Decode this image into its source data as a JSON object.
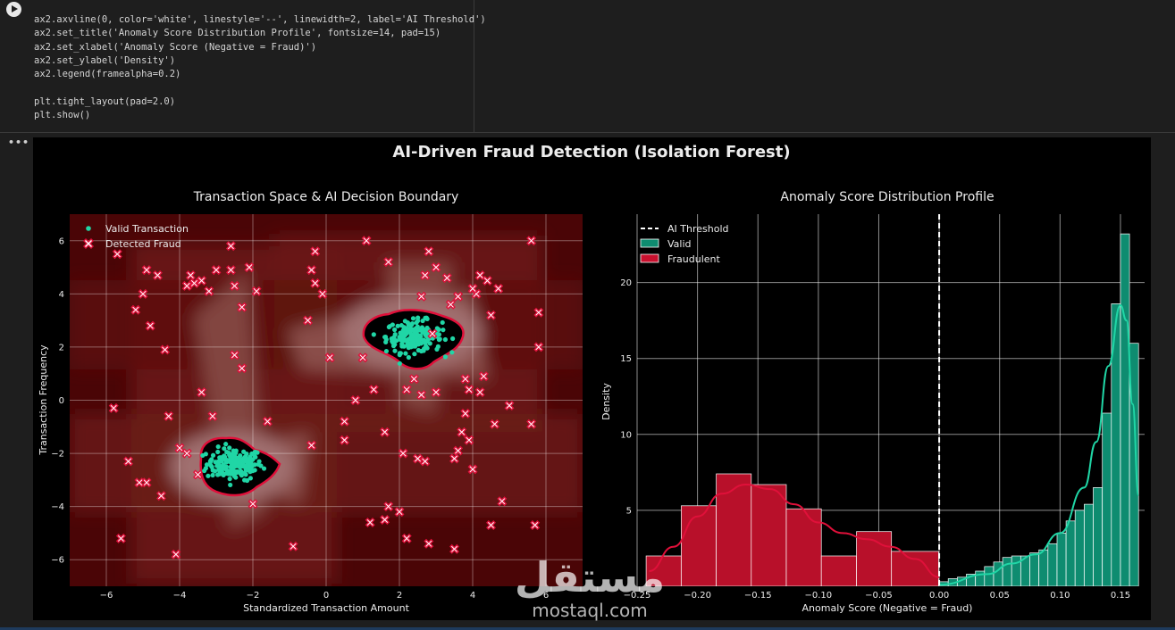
{
  "code_cell": {
    "lines": [
      "ax2.axvline(0, color='white', linestyle='--', linewidth=2, label='AI Threshold')",
      "ax2.set_title('Anomaly Score Distribution Profile', fontsize=14, pad=15)",
      "ax2.set_xlabel('Anomaly Score (Negative = Fraud)')",
      "ax2.set_ylabel('Density')",
      "ax2.legend(framealpha=0.2)",
      "",
      "plt.tight_layout(pad=2.0)",
      "plt.show()"
    ]
  },
  "output_menu": "•••",
  "figure": {
    "suptitle": "AI-Driven Fraud Detection (Isolation Forest)"
  },
  "watermark": {
    "arabic": "مستقل",
    "latin": "mostaql.com"
  },
  "colors": {
    "valid": "#20d6a6",
    "fraud": "#c8102e",
    "fraud_marker_fill": "#ffffff",
    "fraud_marker_edge": "#e0103a",
    "boundary": "#e0103a",
    "plot_bg": "#000000"
  },
  "chart_data": [
    {
      "type": "scatter",
      "title": "Transaction Space & AI Decision Boundary",
      "xlabel": "Standardized Transaction Amount",
      "ylabel": "Transaction Frequency",
      "xlim": [
        -7,
        7
      ],
      "ylim": [
        -7,
        7
      ],
      "xticks": [
        -6,
        -4,
        -2,
        0,
        2,
        4,
        6
      ],
      "yticks": [
        -6,
        -4,
        -2,
        0,
        2,
        4,
        6
      ],
      "grid": true,
      "legend_position": "top-left",
      "series": [
        {
          "name": "Valid Transaction",
          "marker": "circle",
          "clusters": [
            {
              "center": [
                -2.5,
                -2.4
              ],
              "count": 180
            },
            {
              "center": [
                2.4,
                2.4
              ],
              "count": 180
            }
          ]
        },
        {
          "name": "Detected Fraud",
          "marker": "x",
          "points": [
            [
              -5.7,
              5.5
            ],
            [
              -5.2,
              3.4
            ],
            [
              -5.0,
              4.0
            ],
            [
              -4.6,
              4.7
            ],
            [
              -4.9,
              4.9
            ],
            [
              -4.8,
              2.8
            ],
            [
              -4.4,
              1.9
            ],
            [
              -3.8,
              4.3
            ],
            [
              -3.6,
              4.4
            ],
            [
              -3.7,
              4.7
            ],
            [
              -3.4,
              4.5
            ],
            [
              -3.2,
              4.1
            ],
            [
              -3.0,
              4.9
            ],
            [
              -2.6,
              4.9
            ],
            [
              -2.5,
              4.3
            ],
            [
              -2.3,
              3.5
            ],
            [
              -2.6,
              5.8
            ],
            [
              -2.1,
              5.0
            ],
            [
              -1.9,
              4.1
            ],
            [
              -3.4,
              0.3
            ],
            [
              -2.5,
              1.7
            ],
            [
              -2.3,
              1.2
            ],
            [
              -3.1,
              -0.6
            ],
            [
              -1.6,
              -0.8
            ],
            [
              -0.4,
              -1.7
            ],
            [
              -4.3,
              -0.6
            ],
            [
              -4.0,
              -1.8
            ],
            [
              -3.8,
              -2.0
            ],
            [
              -3.5,
              -2.8
            ],
            [
              -4.5,
              -3.6
            ],
            [
              -4.9,
              -3.1
            ],
            [
              -5.1,
              -3.1
            ],
            [
              -5.4,
              -2.3
            ],
            [
              -5.8,
              -0.3
            ],
            [
              -5.6,
              -5.2
            ],
            [
              -4.1,
              -5.8
            ],
            [
              -2.0,
              -3.9
            ],
            [
              -0.9,
              -5.5
            ],
            [
              -0.5,
              3.0
            ],
            [
              -0.1,
              4.0
            ],
            [
              -0.3,
              5.6
            ],
            [
              -0.4,
              4.9
            ],
            [
              -0.3,
              4.4
            ],
            [
              0.1,
              1.6
            ],
            [
              0.5,
              -0.8
            ],
            [
              0.5,
              -1.5
            ],
            [
              0.8,
              0.0
            ],
            [
              1.0,
              1.6
            ],
            [
              1.1,
              6.0
            ],
            [
              1.7,
              5.2
            ],
            [
              1.3,
              0.4
            ],
            [
              1.6,
              -1.2
            ],
            [
              1.2,
              -4.6
            ],
            [
              1.7,
              -4.0
            ],
            [
              1.6,
              -4.5
            ],
            [
              2.0,
              -4.2
            ],
            [
              2.2,
              -5.2
            ],
            [
              2.2,
              0.4
            ],
            [
              2.4,
              0.8
            ],
            [
              2.6,
              0.2
            ],
            [
              2.6,
              3.9
            ],
            [
              2.7,
              4.7
            ],
            [
              2.8,
              5.6
            ],
            [
              3.0,
              5.0
            ],
            [
              3.3,
              4.6
            ],
            [
              3.4,
              3.6
            ],
            [
              3.6,
              3.9
            ],
            [
              4.1,
              4.0
            ],
            [
              4.0,
              4.2
            ],
            [
              4.2,
              4.7
            ],
            [
              4.4,
              4.5
            ],
            [
              4.7,
              4.2
            ],
            [
              4.5,
              3.2
            ],
            [
              5.6,
              6.0
            ],
            [
              5.8,
              3.3
            ],
            [
              5.8,
              2.0
            ],
            [
              4.3,
              0.9
            ],
            [
              4.2,
              0.3
            ],
            [
              3.8,
              0.8
            ],
            [
              3.9,
              0.4
            ],
            [
              3.8,
              -0.5
            ],
            [
              3.7,
              -1.2
            ],
            [
              3.9,
              -1.5
            ],
            [
              3.6,
              -1.9
            ],
            [
              3.5,
              -2.2
            ],
            [
              4.0,
              -2.6
            ],
            [
              4.6,
              -0.9
            ],
            [
              5.0,
              -0.2
            ],
            [
              4.8,
              -3.8
            ],
            [
              4.5,
              -4.7
            ],
            [
              5.7,
              -4.7
            ],
            [
              5.6,
              -0.9
            ],
            [
              3.5,
              -5.6
            ],
            [
              2.8,
              -5.4
            ],
            [
              2.5,
              -2.2
            ],
            [
              2.7,
              -2.3
            ],
            [
              2.1,
              -2.0
            ],
            [
              3.0,
              0.3
            ],
            [
              2.9,
              2.5
            ]
          ]
        }
      ]
    },
    {
      "type": "bar",
      "title": "Anomaly Score Distribution Profile",
      "xlabel": "Anomaly Score (Negative = Fraud)",
      "ylabel": "Density",
      "xlim": [
        -0.25,
        0.17
      ],
      "ylim": [
        0,
        24.5
      ],
      "xticks": [
        -0.25,
        -0.2,
        -0.15,
        -0.1,
        -0.05,
        0.0,
        0.05,
        0.1,
        0.15
      ],
      "yticks": [
        5,
        10,
        15,
        20
      ],
      "grid": true,
      "legend_position": "top-left",
      "threshold": {
        "name": "AI Threshold",
        "x": 0.0
      },
      "series": [
        {
          "name": "Valid",
          "bins": [
            [
              0.0,
              0.0075,
              0.3
            ],
            [
              0.0075,
              0.015,
              0.5
            ],
            [
              0.015,
              0.0225,
              0.6
            ],
            [
              0.0225,
              0.03,
              0.8
            ],
            [
              0.03,
              0.0375,
              1.0
            ],
            [
              0.0375,
              0.045,
              1.3
            ],
            [
              0.045,
              0.0525,
              1.6
            ],
            [
              0.0525,
              0.06,
              1.9
            ],
            [
              0.06,
              0.0675,
              2.0
            ],
            [
              0.0675,
              0.075,
              2.0
            ],
            [
              0.075,
              0.0825,
              2.2
            ],
            [
              0.0825,
              0.09,
              2.4
            ],
            [
              0.09,
              0.0975,
              2.8
            ],
            [
              0.0975,
              0.105,
              3.5
            ],
            [
              0.105,
              0.1125,
              4.3
            ],
            [
              0.1125,
              0.12,
              5.0
            ],
            [
              0.12,
              0.1275,
              5.4
            ],
            [
              0.1275,
              0.135,
              6.5
            ],
            [
              0.135,
              0.1425,
              11.4
            ],
            [
              0.1425,
              0.15,
              18.6
            ],
            [
              0.15,
              0.1575,
              23.2
            ],
            [
              0.1575,
              0.165,
              16.0
            ]
          ],
          "kde": [
            [
              0.0,
              0.1
            ],
            [
              0.04,
              0.8
            ],
            [
              0.06,
              1.5
            ],
            [
              0.08,
              2.1
            ],
            [
              0.1,
              3.5
            ],
            [
              0.12,
              6.5
            ],
            [
              0.13,
              9.5
            ],
            [
              0.14,
              14.5
            ],
            [
              0.15,
              18.5
            ],
            [
              0.155,
              17.5
            ],
            [
              0.16,
              12.0
            ],
            [
              0.165,
              6.0
            ]
          ]
        },
        {
          "name": "Fraudulent",
          "bins": [
            [
              -0.2425,
              -0.2135,
              2.0
            ],
            [
              -0.2135,
              -0.1845,
              5.3
            ],
            [
              -0.1845,
              -0.1555,
              7.4
            ],
            [
              -0.1555,
              -0.1265,
              6.7
            ],
            [
              -0.1265,
              -0.0975,
              5.1
            ],
            [
              -0.0975,
              -0.0685,
              2.0
            ],
            [
              -0.0685,
              -0.0395,
              3.6
            ],
            [
              -0.0395,
              -0.0005,
              2.3
            ]
          ],
          "kde": [
            [
              -0.24,
              1.0
            ],
            [
              -0.22,
              2.6
            ],
            [
              -0.2,
              4.6
            ],
            [
              -0.18,
              6.1
            ],
            [
              -0.16,
              6.7
            ],
            [
              -0.14,
              6.4
            ],
            [
              -0.12,
              5.4
            ],
            [
              -0.1,
              4.2
            ],
            [
              -0.08,
              3.5
            ],
            [
              -0.06,
              3.1
            ],
            [
              -0.04,
              2.6
            ],
            [
              -0.02,
              1.8
            ],
            [
              0.0,
              0.6
            ]
          ]
        }
      ]
    }
  ]
}
